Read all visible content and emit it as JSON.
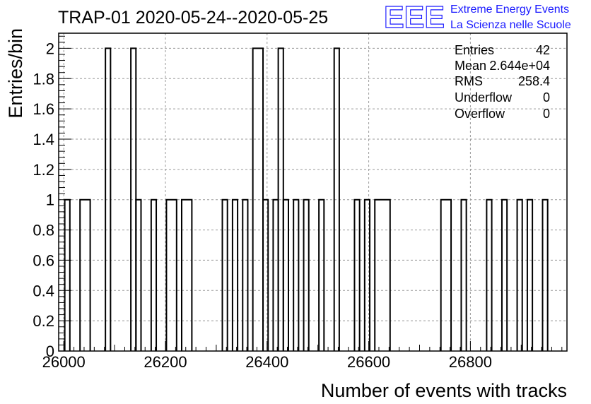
{
  "chart_data": {
    "type": "bar",
    "histogram": true,
    "title": "TRAP-01 2020-05-24--2020-05-25",
    "xlabel": "Number of events with tracks",
    "ylabel": "Entries/bin",
    "xlim": [
      25990,
      26990
    ],
    "ylim": [
      0,
      2.1
    ],
    "xticks": [
      26000,
      26200,
      26400,
      26600,
      26800
    ],
    "yticks": [
      0,
      0.2,
      0.4,
      0.6,
      0.8,
      1,
      1.2,
      1.4,
      1.6,
      1.8,
      2
    ],
    "ytick_labels": [
      "0",
      "0.2",
      "0.4",
      "0.6",
      "0.8",
      "1",
      "1.2",
      "1.4",
      "1.6",
      "1.8",
      "2"
    ],
    "grid": true,
    "line_color": "#000000",
    "grid_color": "#999999",
    "bins": [
      {
        "x0": 26002,
        "x1": 26012,
        "y": 1
      },
      {
        "x0": 26032,
        "x1": 26052,
        "y": 1
      },
      {
        "x0": 26082,
        "x1": 26092,
        "y": 2
      },
      {
        "x0": 26132,
        "x1": 26142,
        "y": 2
      },
      {
        "x0": 26142,
        "x1": 26152,
        "y": 1
      },
      {
        "x0": 26172,
        "x1": 26182,
        "y": 1
      },
      {
        "x0": 26202,
        "x1": 26222,
        "y": 1
      },
      {
        "x0": 26232,
        "x1": 26252,
        "y": 1
      },
      {
        "x0": 26312,
        "x1": 26322,
        "y": 1
      },
      {
        "x0": 26332,
        "x1": 26342,
        "y": 1
      },
      {
        "x0": 26352,
        "x1": 26362,
        "y": 1
      },
      {
        "x0": 26372,
        "x1": 26392,
        "y": 2
      },
      {
        "x0": 26392,
        "x1": 26402,
        "y": 1
      },
      {
        "x0": 26412,
        "x1": 26422,
        "y": 1
      },
      {
        "x0": 26422,
        "x1": 26432,
        "y": 2
      },
      {
        "x0": 26432,
        "x1": 26442,
        "y": 1
      },
      {
        "x0": 26452,
        "x1": 26462,
        "y": 1
      },
      {
        "x0": 26472,
        "x1": 26482,
        "y": 1
      },
      {
        "x0": 26502,
        "x1": 26512,
        "y": 1
      },
      {
        "x0": 26532,
        "x1": 26542,
        "y": 2
      },
      {
        "x0": 26572,
        "x1": 26582,
        "y": 1
      },
      {
        "x0": 26592,
        "x1": 26602,
        "y": 1
      },
      {
        "x0": 26612,
        "x1": 26642,
        "y": 1
      },
      {
        "x0": 26742,
        "x1": 26762,
        "y": 1
      },
      {
        "x0": 26782,
        "x1": 26792,
        "y": 1
      },
      {
        "x0": 26832,
        "x1": 26842,
        "y": 1
      },
      {
        "x0": 26862,
        "x1": 26872,
        "y": 1
      },
      {
        "x0": 26892,
        "x1": 26902,
        "y": 1
      },
      {
        "x0": 26912,
        "x1": 26922,
        "y": 1
      },
      {
        "x0": 26942,
        "x1": 26952,
        "y": 1
      }
    ],
    "stats": [
      {
        "label": "Entries",
        "value": "42"
      },
      {
        "label": "Mean",
        "value": "2.644e+04"
      },
      {
        "label": "RMS",
        "value": "258.4"
      },
      {
        "label": "Underflow",
        "value": "0"
      },
      {
        "label": "Overflow",
        "value": "0"
      }
    ]
  },
  "logo": {
    "mark": "EEE",
    "line1": "Extreme Energy Events",
    "line2": "La Scienza nelle Scuole",
    "color": "#1a1aff"
  }
}
